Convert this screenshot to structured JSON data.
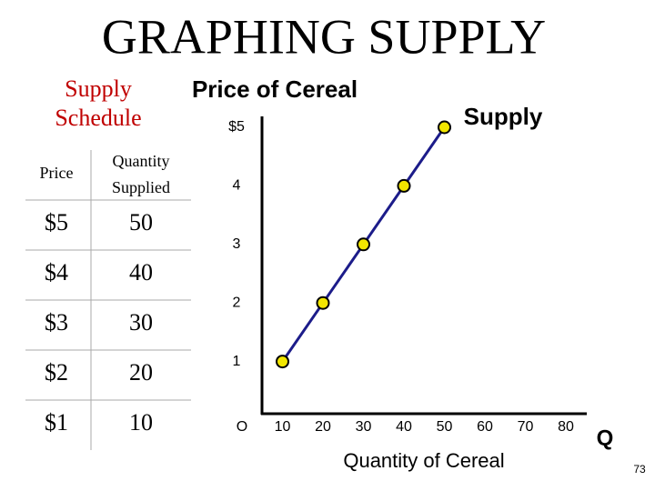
{
  "slide_title": "GRAPHING SUPPLY",
  "table": {
    "caption": [
      "Supply",
      "Schedule"
    ],
    "header": [
      "Price",
      [
        "Quantity",
        "Supplied"
      ]
    ],
    "rows": [
      [
        "$5",
        "50"
      ],
      [
        "$4",
        "40"
      ],
      [
        "$3",
        "30"
      ],
      [
        "$2",
        "20"
      ],
      [
        "$1",
        "10"
      ]
    ]
  },
  "chart_data": {
    "type": "line",
    "title": "Price of Cereal",
    "x_label": "Quantity of Cereal",
    "x_axis_symbol": "Q",
    "x": [
      10,
      20,
      30,
      40,
      50
    ],
    "series": [
      {
        "name": "Supply",
        "color": "#1c1c8a",
        "marker_color": "#f2e600",
        "values": [
          1,
          2,
          3,
          4,
          5
        ]
      }
    ],
    "xlim": [
      0,
      80
    ],
    "ylim": [
      0,
      5
    ],
    "xticks": [
      {
        "value": 0,
        "label": "O"
      },
      10,
      20,
      30,
      40,
      50,
      60,
      70,
      80
    ],
    "yticks": [
      1,
      2,
      3,
      4,
      {
        "value": 5,
        "label": "$5"
      }
    ]
  },
  "page_number": "73"
}
